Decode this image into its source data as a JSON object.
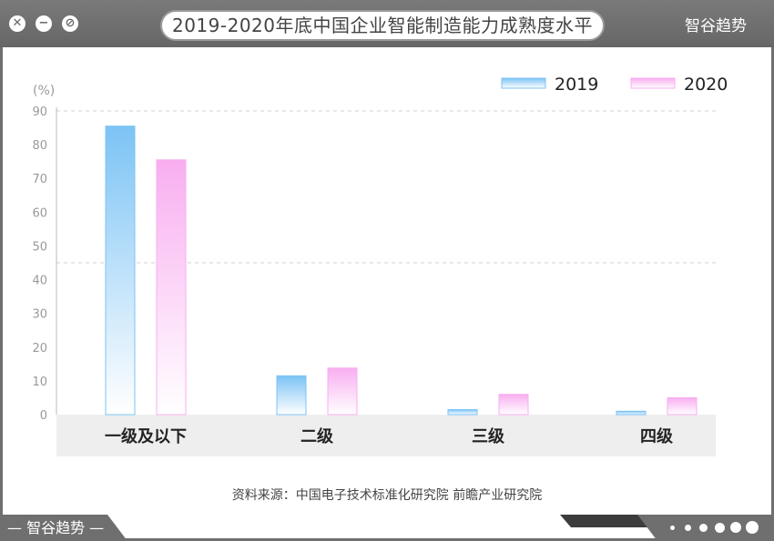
{
  "window": {
    "title": "2019-2020年底中国企业智能制造能力成熟度水平",
    "brand": "智谷趋势",
    "close_icon": "✕",
    "minimize_icon": "−",
    "block_icon": "⊘"
  },
  "footer": {
    "source": "资料来源：中国电子技术标准化研究院 前瞻产业研究院",
    "brand": "— 智谷趋势 —"
  },
  "chart_data": {
    "type": "bar",
    "title": "2019-2020年底中国企业智能制造能力成熟度水平",
    "unit_label": "(%)",
    "categories": [
      "一级及以下",
      "二级",
      "三级",
      "四级"
    ],
    "series": [
      {
        "name": "2019",
        "values": [
          85.5,
          11.5,
          1.5,
          1.0
        ],
        "color": "#7cc3f5"
      },
      {
        "name": "2020",
        "values": [
          75.5,
          13.8,
          6.0,
          5.0
        ],
        "color": "#f8aef0"
      }
    ],
    "ylim": [
      0,
      90
    ],
    "yticks": [
      0,
      10,
      20,
      30,
      40,
      50,
      60,
      70,
      80,
      90
    ],
    "legend": "top-right",
    "grid": "dashed at 45 and 90"
  }
}
